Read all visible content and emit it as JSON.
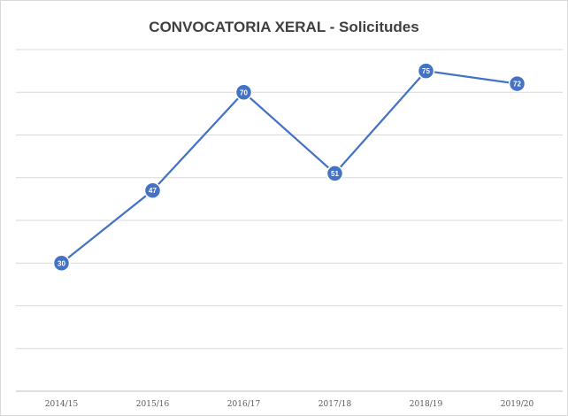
{
  "chart_data": {
    "type": "line",
    "title": "CONVOCATORIA XERAL - Solicitudes",
    "xlabel": "",
    "ylabel": "",
    "categories": [
      "2014/15",
      "2015/16",
      "2016/17",
      "2017/18",
      "2018/19",
      "2019/20"
    ],
    "series": [
      {
        "values": [
          30,
          47,
          70,
          51,
          75,
          72
        ]
      }
    ],
    "ylim": [
      0,
      80
    ],
    "grid": true,
    "data_labels": true,
    "legend": "none",
    "colors": {
      "line": "#4472c4",
      "marker": "#4472c4",
      "marker_border": "#ffffff",
      "grid": "#d9d9d9",
      "axis": "#bfbfbf"
    }
  }
}
